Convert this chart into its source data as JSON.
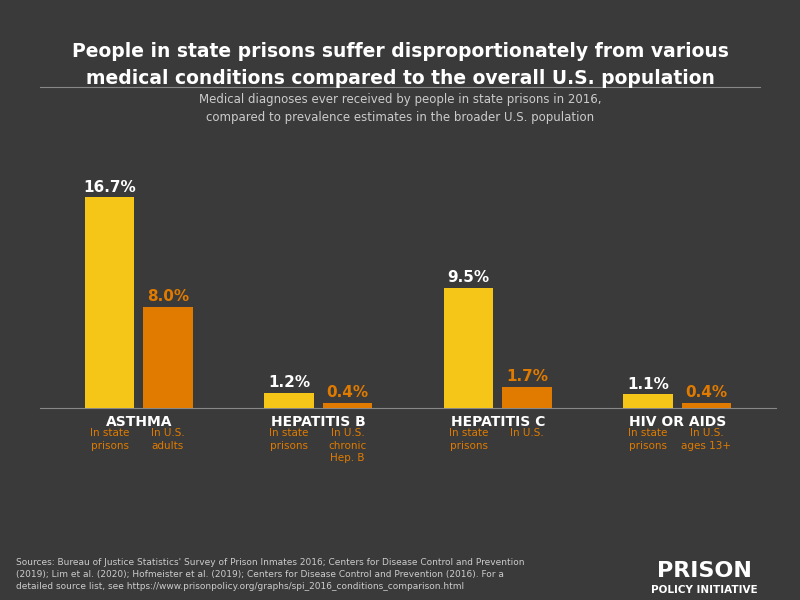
{
  "title_line1": "People in state prisons suffer disproportionately from various",
  "title_line2": "medical conditions compared to the overall U.S. population",
  "subtitle": "Medical diagnoses ever received by people in state prisons in 2016,\ncompared to prevalence estimates in the broader U.S. population",
  "background_color": "#3a3a3a",
  "bar_color_prison": "#f5c518",
  "bar_color_us": "#e07b00",
  "conditions": [
    "ASTHMA",
    "HEPATITIS B",
    "HEPATITIS C",
    "HIV OR AIDS"
  ],
  "prison_values": [
    16.7,
    1.2,
    9.5,
    1.1
  ],
  "us_values": [
    8.0,
    0.4,
    1.7,
    0.4
  ],
  "prison_labels": [
    "In state\nprisons",
    "In state\nprisons",
    "In state\nprisons",
    "In state\nprisons"
  ],
  "us_labels": [
    "In U.S.\nadults",
    "In U.S.\nchronic\nHep. B",
    "In U.S.",
    "In U.S.\nages 13+"
  ],
  "source_text": "Sources: Bureau of Justice Statistics' Survey of Prison Inmates 2016; Centers for Disease Control and Prevention\n(2019); Lim et al. (2020); Hofmeister et al. (2019); Centers for Disease Control and Prevention (2016). For a\ndetailed source list, see https://www.prisonpolicy.org/graphs/spi_2016_conditions_comparison.html",
  "logo_text1": "PRISON",
  "logo_text2": "POLICY INITIATIVE",
  "title_color": "#ffffff",
  "subtitle_color": "#cccccc",
  "condition_label_color": "#ffffff",
  "bar_label_color_prison": "#ffffff",
  "bar_label_color_us": "#e07b00",
  "source_color": "#cccccc",
  "ylim": [
    0,
    19
  ]
}
